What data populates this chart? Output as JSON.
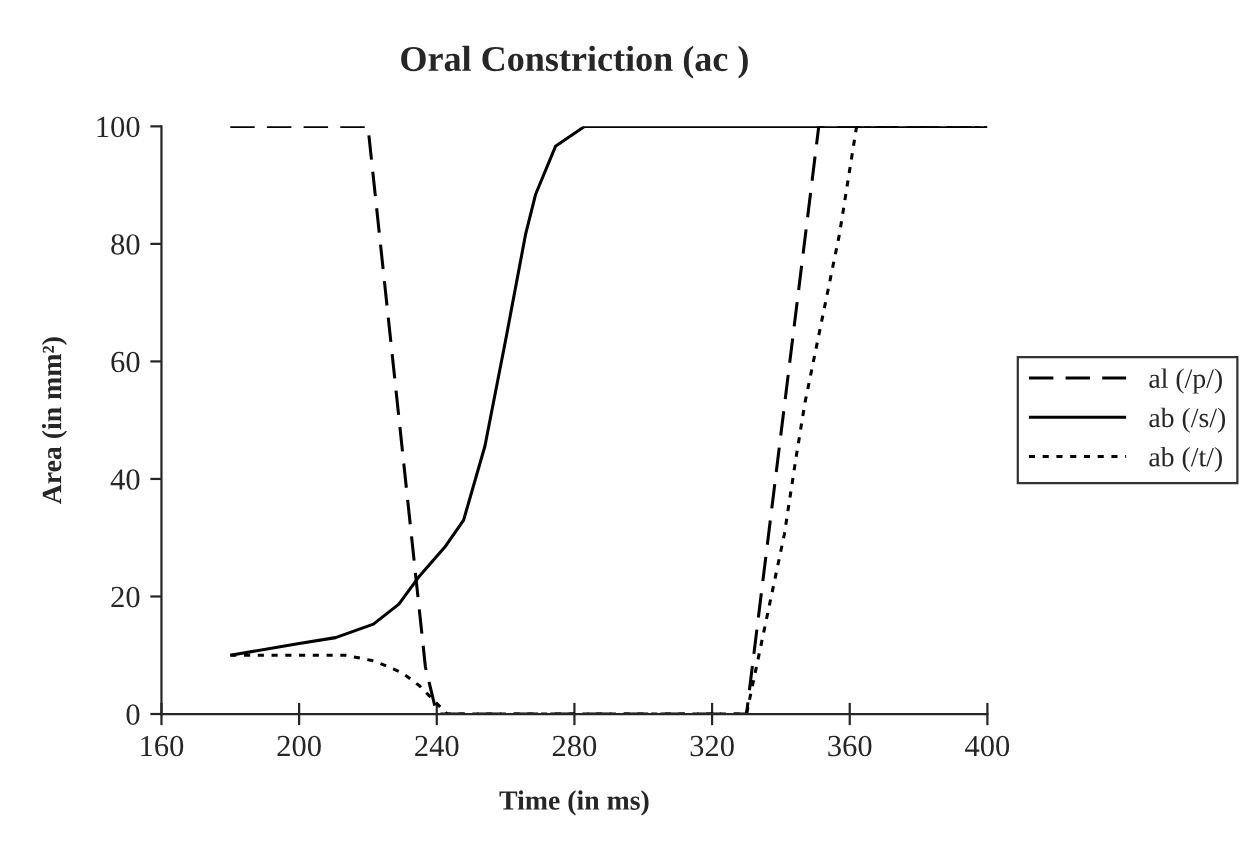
{
  "chart_data": {
    "type": "line",
    "title": "Oral Constriction (ac )",
    "xlabel": "Time (in ms)",
    "ylabel": "Area (in mm²)",
    "xlim": [
      160,
      400
    ],
    "xticks": [
      160,
      200,
      240,
      280,
      320,
      360,
      400
    ],
    "ylim": [
      0,
      100
    ],
    "yticks": [
      0,
      20,
      40,
      60,
      80,
      100
    ],
    "grid": false,
    "legend": "right",
    "marker": "none",
    "series": [
      {
        "name": "al (/p/)",
        "color": "#000000",
        "line_style": "dashed",
        "x": [
          180,
          220,
          236.7,
          240,
          245,
          328,
          330,
          351,
          400
        ],
        "values": [
          100,
          100,
          8,
          0,
          0,
          0,
          0,
          100,
          100
        ]
      },
      {
        "name": "ab (/s/)",
        "color": "#000000",
        "line_style": "solid",
        "x": [
          180,
          200,
          210.6,
          221.6,
          229,
          235,
          242.6,
          247.8,
          254,
          260,
          265.8,
          268.7,
          274.5,
          283,
          400
        ],
        "values": [
          10,
          12,
          13,
          15.3,
          18.7,
          23.5,
          28.6,
          33,
          45.6,
          63.6,
          81.6,
          88.4,
          96.6,
          100,
          100
        ]
      },
      {
        "name": "ab (/t/)",
        "color": "#000000",
        "line_style": "dotted",
        "x": [
          180,
          213.5,
          222,
          230,
          235,
          243,
          330,
          341,
          344.5,
          347,
          357,
          362,
          400
        ],
        "values": [
          10,
          10,
          9,
          7,
          4.8,
          0,
          0,
          30.6,
          44,
          53,
          81.6,
          100,
          100
        ]
      }
    ]
  }
}
